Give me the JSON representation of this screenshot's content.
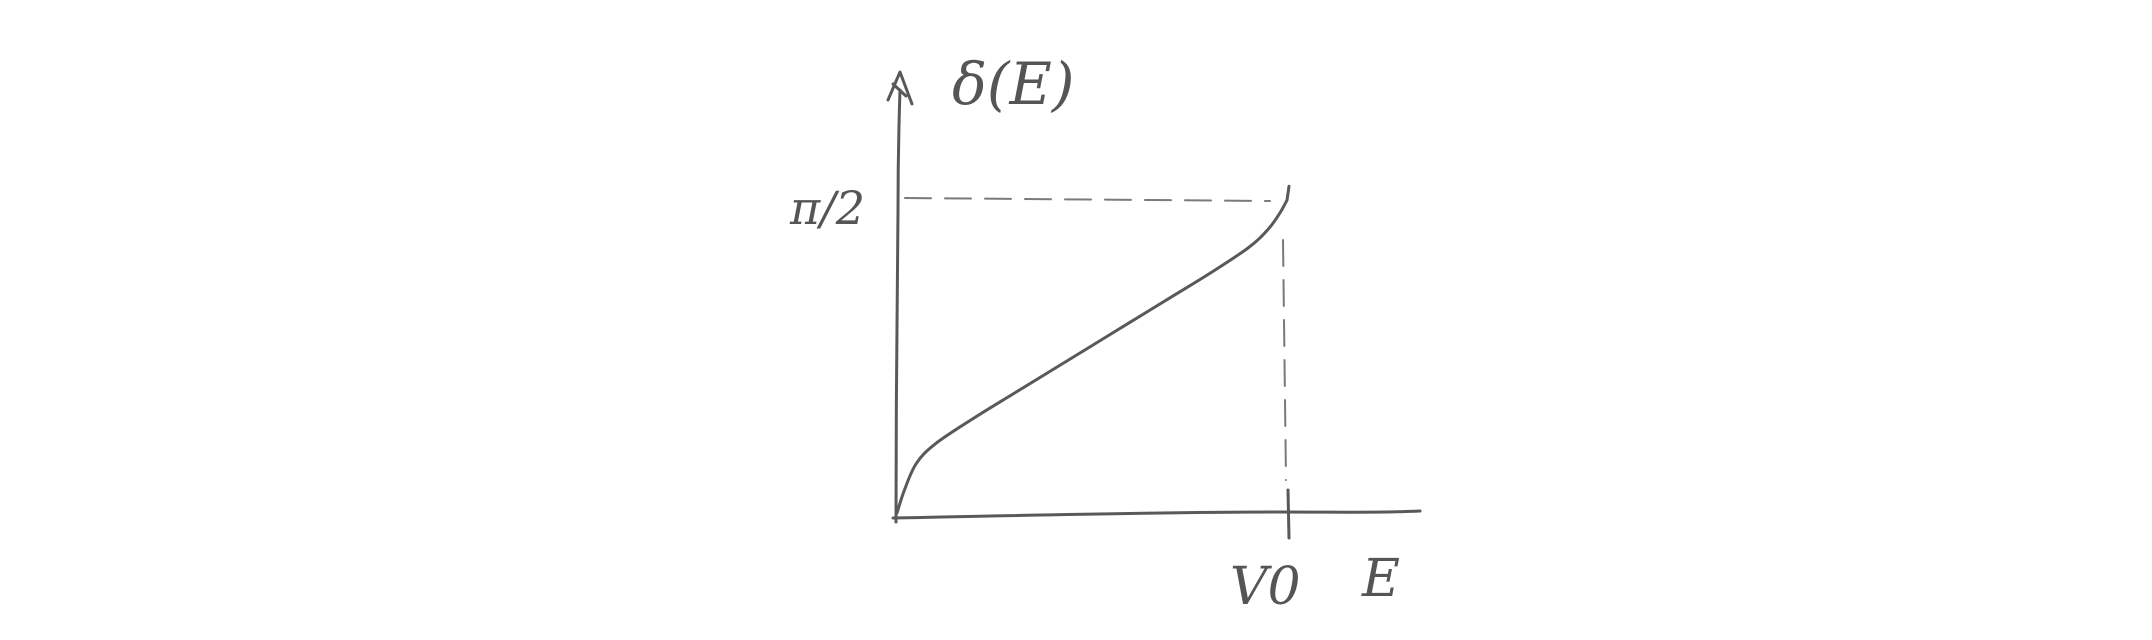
{
  "chart_data": {
    "type": "line",
    "style": "hand-drawn sketch",
    "title": "",
    "ylabel": "δ(E)",
    "xlabel": "E",
    "y_marker_label": "π/2",
    "x_marker_label": "V0",
    "y_marker_value": 1.5708,
    "x_marker_value": 1,
    "xlim": [
      0,
      1.3
    ],
    "ylim": [
      0,
      1.9
    ],
    "grid": false,
    "reference_lines": [
      {
        "orientation": "horizontal",
        "value": 1.5708,
        "style": "dashed"
      },
      {
        "orientation": "vertical",
        "value": 1,
        "style": "dashed"
      }
    ],
    "series": [
      {
        "x": [
          0,
          0.02,
          0.05,
          0.1,
          0.2,
          0.3,
          0.4,
          0.5,
          0.6,
          0.7,
          0.8,
          0.9,
          0.95,
          0.98,
          1.0
        ],
        "y": [
          0,
          0.12,
          0.25,
          0.35,
          0.48,
          0.6,
          0.72,
          0.84,
          0.96,
          1.08,
          1.2,
          1.33,
          1.42,
          1.5,
          1.57
        ]
      }
    ],
    "colors": {
      "ink": "#595959"
    }
  }
}
